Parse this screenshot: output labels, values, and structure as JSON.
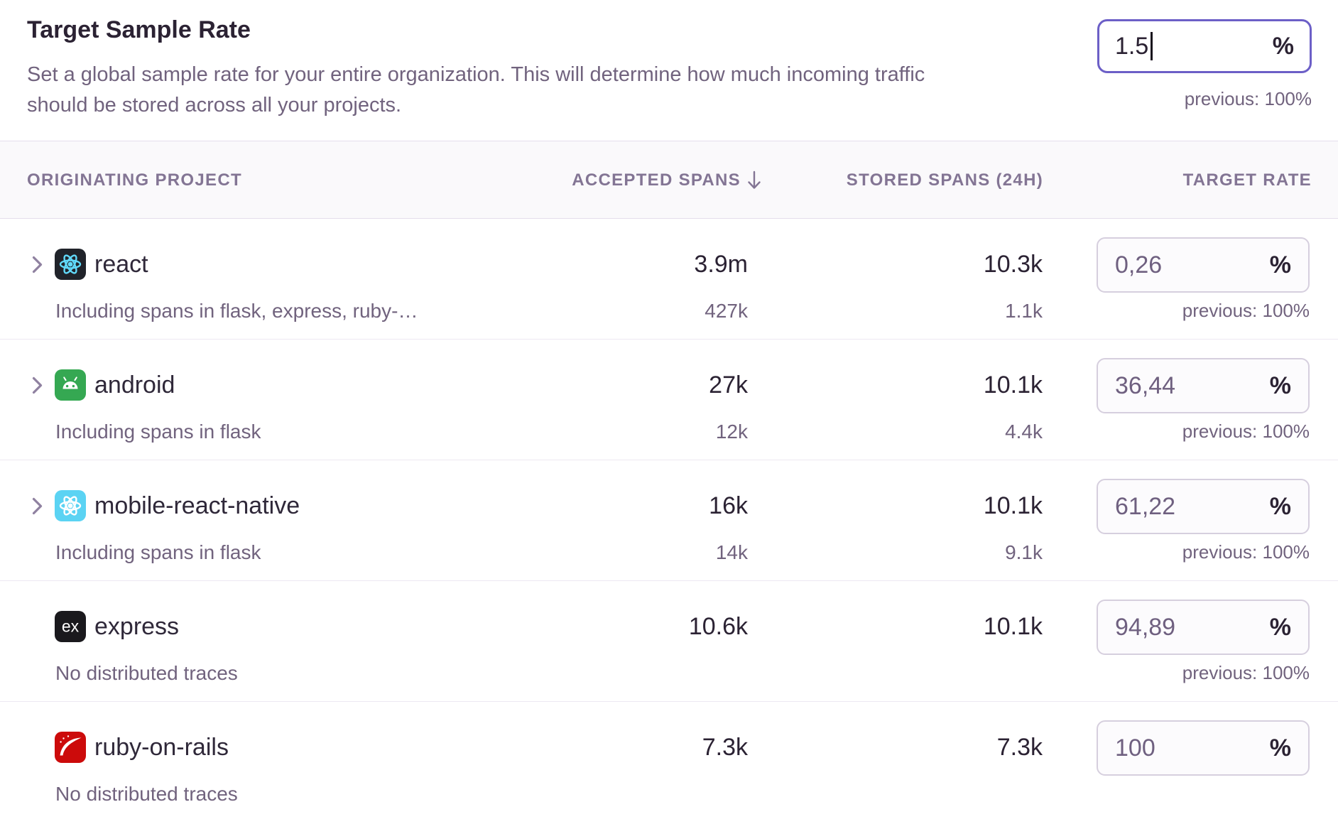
{
  "page": {
    "title": "Target Sample Rate",
    "description_lines": [
      "Set a global sample rate for your entire organization. This will determine how much incoming traffic",
      "should be stored across all your projects."
    ],
    "rate_input": {
      "value": "1.5",
      "unit": "%",
      "previous": "previous: 100%"
    }
  },
  "table": {
    "columns": {
      "project": "ORIGINATING PROJECT",
      "accepted": "ACCEPTED SPANS",
      "sort_direction": "descending",
      "stored": "STORED SPANS (24H)",
      "target": "TARGET RATE"
    },
    "rows": [
      {
        "name": "react",
        "icon": "react",
        "has_chevron": true,
        "subtitle": "Including spans in flask, express, ruby-…",
        "accepted": "3.9m",
        "accepted_sub": "427k",
        "stored": "10.3k",
        "stored_sub": "1.1k",
        "rate": "0,26",
        "unit": "%",
        "previous": "previous: 100%"
      },
      {
        "name": "android",
        "icon": "android",
        "has_chevron": true,
        "subtitle": "Including spans in flask",
        "accepted": "27k",
        "accepted_sub": "12k",
        "stored": "10.1k",
        "stored_sub": "4.4k",
        "rate": "36,44",
        "unit": "%",
        "previous": "previous: 100%"
      },
      {
        "name": "mobile-react-native",
        "icon": "react-native",
        "has_chevron": true,
        "subtitle": "Including spans in flask",
        "accepted": "16k",
        "accepted_sub": "14k",
        "stored": "10.1k",
        "stored_sub": "9.1k",
        "rate": "61,22",
        "unit": "%",
        "previous": "previous: 100%"
      },
      {
        "name": "express",
        "icon": "express",
        "has_chevron": false,
        "subtitle": "No distributed traces",
        "accepted": "10.6k",
        "accepted_sub": "",
        "stored": "10.1k",
        "stored_sub": "",
        "rate": "94,89",
        "unit": "%",
        "previous": "previous: 100%"
      },
      {
        "name": "ruby-on-rails",
        "icon": "ruby",
        "has_chevron": false,
        "subtitle": "No distributed traces",
        "accepted": "7.3k",
        "accepted_sub": "",
        "stored": "7.3k",
        "stored_sub": "",
        "rate": "100",
        "unit": "%",
        "previous": ""
      }
    ]
  },
  "colors": {
    "accent_purple": "#6C5FC7",
    "text_dark": "#2B2233",
    "text_muted": "#71637E",
    "header_text": "#837594",
    "header_bg": "#FAF9FB",
    "row_border": "#EDE8F2",
    "input_border": "#D6CFDE",
    "react_icon_bg": "#20232A",
    "react_logo_cyan": "#61DAFB",
    "android_green": "#35A852",
    "react_native_bg": "#5BD3F3",
    "express_bg": "#1A191D",
    "ruby_red": "#CC0B0B"
  }
}
